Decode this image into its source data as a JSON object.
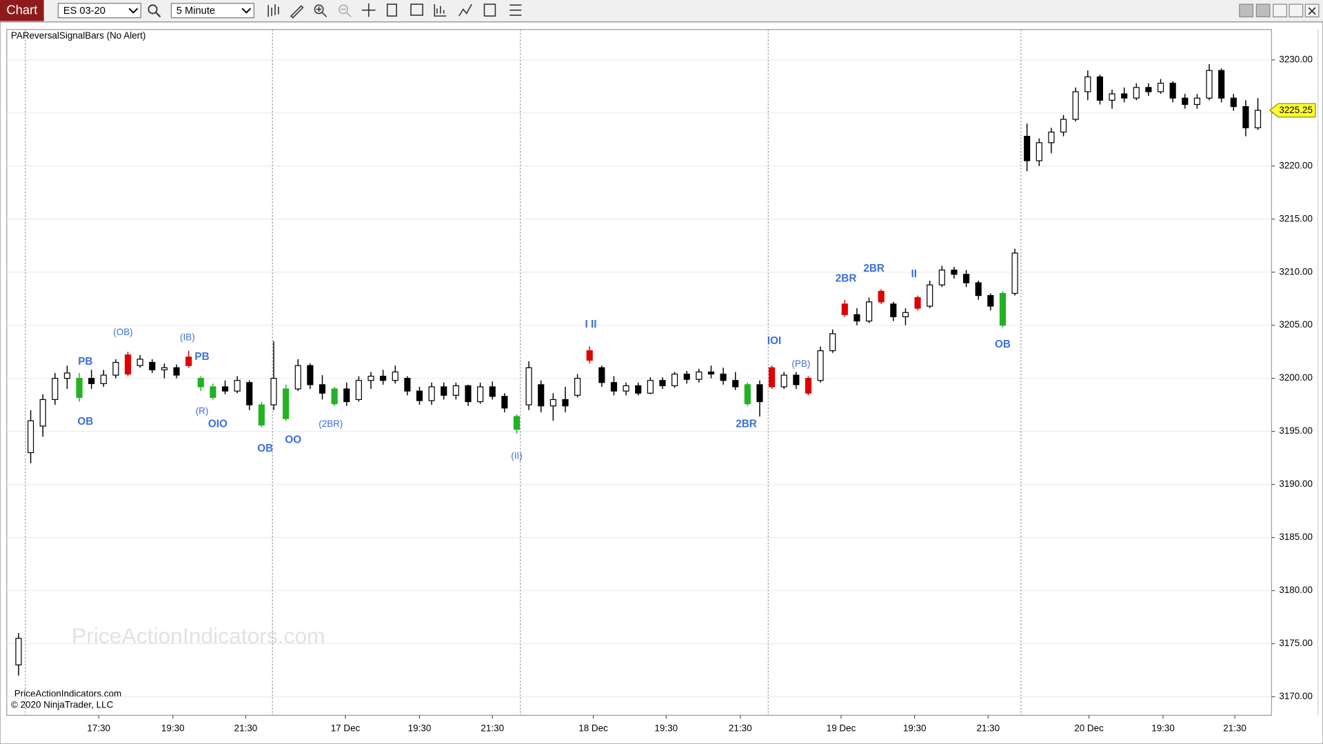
{
  "toolbar": {
    "tab": "Chart",
    "instrument": "ES 03-20",
    "interval": "5 Minute"
  },
  "chart_data": {
    "type": "candlestick",
    "title": "PAReversalSignalBars (No Alert)",
    "watermark": "PriceActionIndicators.com",
    "footer": [
      "PriceActionIndicators.com",
      "© 2020 NinjaTrader, LLC"
    ],
    "ohlc": [
      [
        3173,
        3176,
        3172,
        3175.5
      ],
      [
        3193,
        3197,
        3192,
        3196
      ],
      [
        3195.5,
        3198.5,
        3194.5,
        3198
      ],
      [
        3198,
        3200.5,
        3197.5,
        3200
      ],
      [
        3200,
        3201.2,
        3199,
        3200.5
      ],
      [
        3198.2,
        3200.5,
        3197.8,
        3200
      ],
      [
        3200,
        3200.8,
        3199,
        3199.5
      ],
      [
        3199.5,
        3200.8,
        3199.2,
        3200.3
      ],
      [
        3200.3,
        3201.8,
        3200,
        3201.5
      ],
      [
        3202.2,
        3202.5,
        3200.2,
        3200.4
      ],
      [
        3201.2,
        3202.2,
        3201,
        3201.8
      ],
      [
        3201.5,
        3201.8,
        3200.5,
        3200.8
      ],
      [
        3200.8,
        3201.4,
        3200,
        3201
      ],
      [
        3201,
        3201.3,
        3200,
        3200.3
      ],
      [
        3202,
        3202.6,
        3201,
        3201.2
      ],
      [
        3199.2,
        3200.2,
        3198.8,
        3200
      ],
      [
        3198.2,
        3199.5,
        3198,
        3199.2
      ],
      [
        3199.2,
        3199.8,
        3198.5,
        3198.8
      ],
      [
        3198.8,
        3200.2,
        3198.6,
        3199.8
      ],
      [
        3199.6,
        3199.8,
        3197,
        3197.5
      ],
      [
        3195.6,
        3197.8,
        3195.4,
        3197.5
      ],
      [
        3197.5,
        3203.5,
        3197,
        3200
      ],
      [
        3196.2,
        3199.4,
        3196,
        3199
      ],
      [
        3199,
        3201.8,
        3198.8,
        3201.2
      ],
      [
        3201.2,
        3201.4,
        3199,
        3199.4
      ],
      [
        3199.4,
        3200.3,
        3198,
        3198.6
      ],
      [
        3197.6,
        3199.2,
        3197.4,
        3199
      ],
      [
        3199,
        3199.6,
        3197.4,
        3197.8
      ],
      [
        3198,
        3200.2,
        3197.8,
        3199.8
      ],
      [
        3199.8,
        3200.6,
        3199,
        3200.2
      ],
      [
        3200.2,
        3200.8,
        3199.4,
        3199.8
      ],
      [
        3199.8,
        3201.2,
        3199.5,
        3200.6
      ],
      [
        3200,
        3200.2,
        3198.4,
        3198.8
      ],
      [
        3198.8,
        3199.2,
        3197.5,
        3197.9
      ],
      [
        3197.9,
        3199.6,
        3197.5,
        3199.2
      ],
      [
        3199.2,
        3199.6,
        3198,
        3198.4
      ],
      [
        3198.4,
        3199.6,
        3198,
        3199.3
      ],
      [
        3199.3,
        3199.4,
        3197.4,
        3197.8
      ],
      [
        3197.8,
        3199.6,
        3197.6,
        3199.2
      ],
      [
        3199.2,
        3199.7,
        3198,
        3198.3
      ],
      [
        3198.3,
        3198.6,
        3196.8,
        3197.2
      ],
      [
        3195.2,
        3196.6,
        3194.8,
        3196.4
      ],
      [
        3197.5,
        3201.6,
        3197,
        3201
      ],
      [
        3199.4,
        3199.8,
        3196.8,
        3197.4
      ],
      [
        3197.4,
        3198.6,
        3196,
        3198
      ],
      [
        3198,
        3199.2,
        3196.8,
        3197.4
      ],
      [
        3198.4,
        3200.4,
        3198.2,
        3200
      ],
      [
        3202.6,
        3203,
        3201.4,
        3201.7
      ],
      [
        3201,
        3201.2,
        3199.2,
        3199.6
      ],
      [
        3199.6,
        3200.2,
        3198.4,
        3198.8
      ],
      [
        3198.8,
        3199.6,
        3198.4,
        3199.3
      ],
      [
        3199.3,
        3199.6,
        3198.4,
        3198.6
      ],
      [
        3198.6,
        3200.1,
        3198.5,
        3199.8
      ],
      [
        3199.8,
        3200.1,
        3199,
        3199.3
      ],
      [
        3199.3,
        3200.6,
        3199.1,
        3200.4
      ],
      [
        3200.4,
        3200.7,
        3199.5,
        3199.9
      ],
      [
        3199.9,
        3200.9,
        3199.6,
        3200.6
      ],
      [
        3200.6,
        3201.2,
        3200,
        3200.4
      ],
      [
        3200.4,
        3201,
        3199.4,
        3199.8
      ],
      [
        3199.8,
        3200.6,
        3198.9,
        3199.2
      ],
      [
        3197.6,
        3199.6,
        3197.4,
        3199.4
      ],
      [
        3199.4,
        3199.8,
        3196.4,
        3197.8
      ],
      [
        3201,
        3201.2,
        3199,
        3199.2
      ],
      [
        3199.2,
        3200.6,
        3199,
        3200.3
      ],
      [
        3200.3,
        3200.6,
        3199,
        3199.4
      ],
      [
        3200,
        3200.2,
        3198.4,
        3198.6
      ],
      [
        3199.8,
        3203,
        3199.6,
        3202.6
      ],
      [
        3202.6,
        3204.6,
        3202.4,
        3204.2
      ],
      [
        3207,
        3207.4,
        3205.8,
        3206
      ],
      [
        3206,
        3206.6,
        3205,
        3205.4
      ],
      [
        3205.4,
        3207.6,
        3205.2,
        3207.2
      ],
      [
        3208.2,
        3208.4,
        3207,
        3207.2
      ],
      [
        3207,
        3207.2,
        3205.4,
        3205.8
      ],
      [
        3205.8,
        3206.6,
        3205,
        3206.2
      ],
      [
        3207.6,
        3207.8,
        3206.4,
        3206.6
      ],
      [
        3206.8,
        3209.2,
        3206.6,
        3208.8
      ],
      [
        3208.8,
        3210.6,
        3208.6,
        3210.2
      ],
      [
        3210.2,
        3210.5,
        3209.4,
        3209.8
      ],
      [
        3209.8,
        3210.2,
        3208.6,
        3209
      ],
      [
        3209,
        3209.2,
        3207.4,
        3207.8
      ],
      [
        3207.8,
        3208,
        3206.4,
        3206.8
      ],
      [
        3205,
        3208.2,
        3204.8,
        3208
      ],
      [
        3208,
        3212.2,
        3207.8,
        3211.8
      ],
      [
        3222.8,
        3224,
        3219.5,
        3220.5
      ],
      [
        3220.5,
        3222.6,
        3220,
        3222.2
      ],
      [
        3222.2,
        3223.6,
        3221.2,
        3223.2
      ],
      [
        3223.2,
        3224.8,
        3222.8,
        3224.4
      ],
      [
        3224.4,
        3227.4,
        3224.2,
        3227
      ],
      [
        3227,
        3229,
        3226.2,
        3228.4
      ],
      [
        3228.4,
        3228.6,
        3225.8,
        3226.2
      ],
      [
        3226.2,
        3227.2,
        3225.4,
        3226.8
      ],
      [
        3226.8,
        3227.4,
        3226,
        3226.4
      ],
      [
        3226.4,
        3227.8,
        3226.2,
        3227.4
      ],
      [
        3227.4,
        3227.8,
        3226.6,
        3227
      ],
      [
        3227,
        3228.2,
        3226.8,
        3227.8
      ],
      [
        3227.8,
        3228,
        3226,
        3226.4
      ],
      [
        3226.4,
        3226.8,
        3225.4,
        3225.8
      ],
      [
        3225.8,
        3226.8,
        3225.4,
        3226.4
      ],
      [
        3226.4,
        3229.6,
        3226.2,
        3229
      ],
      [
        3229,
        3229.2,
        3226,
        3226.4
      ],
      [
        3226.4,
        3226.8,
        3225.2,
        3225.6
      ],
      [
        3225.6,
        3226.2,
        3222.8,
        3223.6
      ],
      [
        3223.6,
        3226.4,
        3223.4,
        3225.25
      ]
    ],
    "bar_colors": [
      null,
      null,
      null,
      null,
      null,
      "#22b222",
      null,
      null,
      null,
      "#e00000",
      null,
      null,
      null,
      null,
      "#e00000",
      "#22b222",
      "#22b222",
      null,
      null,
      null,
      "#22b222",
      null,
      "#22b222",
      null,
      null,
      null,
      "#22b222",
      null,
      null,
      null,
      null,
      null,
      null,
      null,
      null,
      null,
      null,
      null,
      null,
      null,
      null,
      "#22b222",
      null,
      null,
      null,
      null,
      null,
      "#e00000",
      null,
      null,
      null,
      null,
      null,
      null,
      null,
      null,
      null,
      null,
      null,
      null,
      "#22b222",
      null,
      "#e00000",
      null,
      null,
      "#e00000",
      null,
      null,
      "#e00000",
      null,
      null,
      "#e00000",
      null,
      null,
      "#e00000",
      null,
      null,
      null,
      null,
      null,
      null,
      "#22b222",
      null,
      null,
      null,
      null,
      null,
      null,
      null,
      null,
      null,
      null,
      null,
      null,
      null,
      null,
      null,
      null,
      null,
      null,
      null,
      null,
      null
    ],
    "up_color": "#ffffff",
    "down_color": "#000000",
    "outline_color": "#000000",
    "xlim": [
      -0.972,
      103.125
    ],
    "xticks": [
      {
        "value": 6.6,
        "label": "17:30"
      },
      {
        "value": 12.7,
        "label": "19:30"
      },
      {
        "value": 18.7,
        "label": "21:30"
      },
      {
        "value": 26.9,
        "label": "17 Dec"
      },
      {
        "value": 33.0,
        "label": "19:30"
      },
      {
        "value": 39.0,
        "label": "21:30"
      },
      {
        "value": 47.3,
        "label": "18 Dec"
      },
      {
        "value": 53.3,
        "label": "19:30"
      },
      {
        "value": 59.4,
        "label": "21:30"
      },
      {
        "value": 67.7,
        "label": "19 Dec"
      },
      {
        "value": 73.75,
        "label": "19:30"
      },
      {
        "value": 79.8,
        "label": "21:30"
      },
      {
        "value": 88.1,
        "label": "20 Dec"
      },
      {
        "value": 94.2,
        "label": "19:30"
      },
      {
        "value": 100.1,
        "label": "21:30"
      }
    ],
    "session_breaks": [
      0.56,
      20.9,
      41.3,
      61.7,
      82.5
    ],
    "ylim": [
      3168.25,
      3232.86
    ],
    "yticks": [
      {
        "value": 3170,
        "label": "3170.00"
      },
      {
        "value": 3175,
        "label": "3175.00"
      },
      {
        "value": 3180,
        "label": "3180.00"
      },
      {
        "value": 3185,
        "label": "3185.00"
      },
      {
        "value": 3190,
        "label": "3190.00"
      },
      {
        "value": 3195,
        "label": "3195.00"
      },
      {
        "value": 3200,
        "label": "3200.00"
      },
      {
        "value": 3205,
        "label": "3205.00"
      },
      {
        "value": 3210,
        "label": "3210.00"
      },
      {
        "value": 3215,
        "label": "3215.00"
      },
      {
        "value": 3220,
        "label": "3220.00"
      },
      {
        "value": 3225,
        "label": "3225.00"
      },
      {
        "value": 3230,
        "label": "3230.00"
      }
    ],
    "grid": true,
    "last_price": 3225.25,
    "annotation_color": "#3a6fd8",
    "annotations": [
      {
        "text": "PB",
        "x": 5.5,
        "y": 3201.55
      },
      {
        "text": "OB",
        "x": 5.5,
        "y": 3195.9
      },
      {
        "text": "(OB)",
        "x": 8.6,
        "y": 3204.3
      },
      {
        "text": "(IB)",
        "x": 13.9,
        "y": 3203.8
      },
      {
        "text": "PB",
        "x": 15.1,
        "y": 3202.0
      },
      {
        "text": "(R)",
        "x": 15.1,
        "y": 3196.85
      },
      {
        "text": "OIO",
        "x": 16.4,
        "y": 3195.65
      },
      {
        "text": "OB",
        "x": 20.3,
        "y": 3193.35
      },
      {
        "text": "OO",
        "x": 22.6,
        "y": 3194.15
      },
      {
        "text": "(2BR)",
        "x": 25.7,
        "y": 3195.65
      },
      {
        "text": "(II)",
        "x": 41.0,
        "y": 3192.65
      },
      {
        "text": "I II",
        "x": 47.1,
        "y": 3205.05
      },
      {
        "text": "2BR",
        "x": 59.9,
        "y": 3195.65
      },
      {
        "text": "IOI",
        "x": 62.2,
        "y": 3203.5
      },
      {
        "text": "(PB)",
        "x": 64.4,
        "y": 3201.3
      },
      {
        "text": "2BR",
        "x": 68.1,
        "y": 3209.35
      },
      {
        "text": "2BR",
        "x": 70.4,
        "y": 3210.3
      },
      {
        "text": "II",
        "x": 73.7,
        "y": 3209.8
      },
      {
        "text": "OB",
        "x": 81.0,
        "y": 3203.15
      }
    ]
  }
}
